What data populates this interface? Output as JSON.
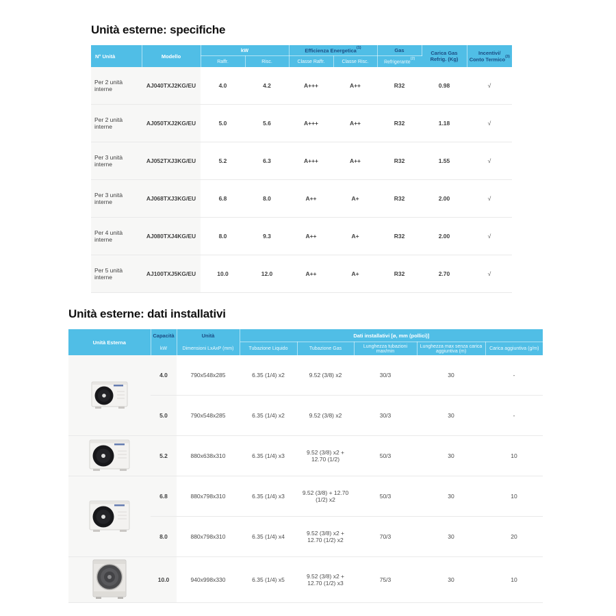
{
  "colors": {
    "header_bg": "#50bee6",
    "header_navy_text": "#1b4b82",
    "header_white_text": "#ffffff",
    "shaded_column_bg": "#f7f7f6",
    "row_divider": "#e9e9e9",
    "body_text": "#3f3f3f"
  },
  "spec_section": {
    "title": "Unità esterne: specifiche",
    "header": {
      "n_unita": "N° Unità",
      "modello": "Modello",
      "kw": "kW",
      "kw_raff": "Raffr.",
      "kw_risc": "Risc.",
      "efficienza": "Efficienza Energetica",
      "efficienza_sup": "(1)",
      "classe_raff": "Classe Raffr.",
      "classe_risc": "Classe Risc.",
      "gas": "Gas",
      "refrigerante": "Refrigerante",
      "refrigerante_sup": "(2)",
      "carica_gas": "Carica Gas Refrig. (Kg)",
      "incentivi_line1": "Incentivi/",
      "incentivi_line2": "Conto Termico",
      "incentivi_sup": "(3)"
    },
    "rows": [
      [
        "Per 2 unità interne",
        "AJ040TXJ2KG/EU",
        "4.0",
        "4.2",
        "A+++",
        "A++",
        "R32",
        "0.98",
        "√"
      ],
      [
        "Per 2 unità interne",
        "AJ050TXJ2KG/EU",
        "5.0",
        "5.6",
        "A+++",
        "A++",
        "R32",
        "1.18",
        "√"
      ],
      [
        "Per 3 unità interne",
        "AJ052TXJ3KG/EU",
        "5.2",
        "6.3",
        "A+++",
        "A++",
        "R32",
        "1.55",
        "√"
      ],
      [
        "Per 3 unità interne",
        "AJ068TXJ3KG/EU",
        "6.8",
        "8.0",
        "A++",
        "A+",
        "R32",
        "2.00",
        "√"
      ],
      [
        "Per 4 unità interne",
        "AJ080TXJ4KG/EU",
        "8.0",
        "9.3",
        "A++",
        "A+",
        "R32",
        "2.00",
        "√"
      ],
      [
        "Per 5 unità interne",
        "AJ100TXJ5KG/EU",
        "10.0",
        "12.0",
        "A++",
        "A+",
        "R32",
        "2.70",
        "√"
      ]
    ]
  },
  "install_section": {
    "title": "Unità esterne: dati installativi",
    "header": {
      "unita_esterna": "Unità Esterna",
      "capacita": "Capacità",
      "capacita_sub": "kW",
      "unita": "Unità",
      "unita_sub": "Dimensioni LxAxP (mm)",
      "dati_group": "Dati installativi [ø, mm (pollici)]",
      "tubazione_liquido": "Tubazione Liquido",
      "tubazione_gas": "Tubazione Gas",
      "lunghezza_tubazioni": "Lunghezza tubazioni max/min",
      "lunghezza_max": "Lunghezza max senza carica aggiuntiva (m)",
      "carica_aggiuntiva": "Carica aggiuntiva (g/m)"
    },
    "rows": [
      [
        "4.0",
        "790x548x285",
        "6.35 (1/4) x2",
        "9.52 (3/8) x2",
        "30/3",
        "30",
        "-"
      ],
      [
        "5.0",
        "790x548x285",
        "6.35 (1/4) x2",
        "9.52 (3/8) x2",
        "30/3",
        "30",
        "-"
      ],
      [
        "5.2",
        "880x638x310",
        "6.35 (1/4) x3",
        "9.52 (3/8) x2 + 12.70 (1/2)",
        "50/3",
        "30",
        "10"
      ],
      [
        "6.8",
        "880x798x310",
        "6.35 (1/4) x3",
        "9.52 (3/8) + 12.70 (1/2) x2",
        "50/3",
        "30",
        "10"
      ],
      [
        "8.0",
        "880x798x310",
        "6.35 (1/4) x4",
        "9.52 (3/8) x2 + 12.70 (1/2) x2",
        "70/3",
        "30",
        "20"
      ],
      [
        "10.0",
        "940x998x330",
        "6.35 (1/4) x5",
        "9.52 (3/8) x2 + 12.70 (1/2) x3",
        "75/3",
        "30",
        "10"
      ]
    ],
    "image_groups": [
      {
        "start": 0,
        "span": 2,
        "variant": "small",
        "alt": "outdoor-unit-small"
      },
      {
        "start": 2,
        "span": 1,
        "variant": "medium",
        "alt": "outdoor-unit-medium"
      },
      {
        "start": 3,
        "span": 2,
        "variant": "medium",
        "alt": "outdoor-unit-medium"
      },
      {
        "start": 5,
        "span": 1,
        "variant": "large",
        "alt": "outdoor-unit-large"
      }
    ]
  }
}
